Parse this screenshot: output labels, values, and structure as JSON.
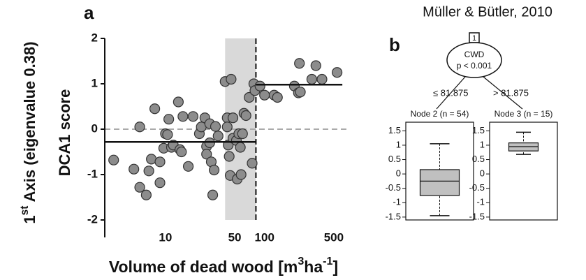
{
  "credit": "Müller & Bütler, 2010",
  "chart_data": [
    {
      "type": "scatter",
      "title": "a",
      "ylabel_lines": [
        [
          {
            "text": "1"
          },
          {
            "text": "st",
            "sup": true
          },
          {
            "text": " Axis (eigenvalue 0.38)"
          }
        ],
        [
          {
            "text": "DCA1 score"
          }
        ]
      ],
      "xlabel": [
        {
          "text": "Volume of dead wood [m"
        },
        {
          "text": "3",
          "sup": true
        },
        {
          "text": "ha"
        },
        {
          "text": "-1",
          "sup": true
        },
        {
          "text": "]"
        }
      ],
      "xlog": true,
      "xlim": [
        2.44,
        716
      ],
      "ylim": [
        -2,
        2
      ],
      "xticks": [
        10,
        50,
        100,
        500
      ],
      "yticks": [
        2,
        1,
        0,
        -1,
        -2
      ],
      "color": "#8c8c8c",
      "shade": [
        40,
        81.875
      ],
      "vline": 81.875,
      "hline": 0,
      "means": [
        {
          "from": 2.44,
          "to": 81.875,
          "value": -0.28
        },
        {
          "from": 81.875,
          "to": 610,
          "value": 0.98
        }
      ],
      "x": [
        3.0,
        4.8,
        5.5,
        5.5,
        6.4,
        6.8,
        7.2,
        7.8,
        8.8,
        8.8,
        9.6,
        10,
        10.5,
        10.8,
        11.5,
        12,
        13.5,
        14,
        14.5,
        15,
        17,
        19,
        22,
        23,
        25,
        26,
        26,
        28,
        28,
        29,
        30,
        31,
        32,
        34,
        40,
        42,
        42,
        43,
        44,
        45,
        46,
        48,
        48,
        52,
        53,
        55,
        57,
        58,
        60,
        62,
        65,
        70,
        75,
        78,
        80,
        90,
        100,
        125,
        135,
        200,
        220,
        225,
        230,
        300,
        330,
        380,
        540
      ],
      "y": [
        -0.68,
        -0.88,
        0.05,
        -1.28,
        -1.45,
        -0.92,
        -0.66,
        0.45,
        -1.18,
        -0.72,
        -0.42,
        -0.1,
        -0.12,
        0.22,
        -0.4,
        -0.35,
        0.6,
        -0.45,
        -0.5,
        0.28,
        -0.82,
        0.28,
        -0.1,
        0.05,
        0.25,
        -0.38,
        -0.55,
        -0.3,
        0.12,
        -0.72,
        -1.45,
        -0.9,
        0.06,
        -0.15,
        1.05,
        0.25,
        0.05,
        -0.35,
        -0.6,
        -1.02,
        1.1,
        0.25,
        -0.2,
        -0.25,
        -1.1,
        -0.1,
        -0.4,
        -1.0,
        -0.1,
        0.35,
        0.3,
        0.7,
        -0.75,
        1.0,
        0.85,
        0.95,
        0.75,
        0.75,
        0.7,
        0.95,
        0.8,
        1.45,
        0.82,
        1.1,
        1.4,
        1.1,
        1.25
      ]
    },
    {
      "type": "box",
      "title": "b",
      "split": {
        "id": "1",
        "variable": "CWD",
        "p": "p < 0.001",
        "left": "≤ 81.875",
        "right": "> 81.875"
      },
      "categories": [
        "Node 2 (n = 54)",
        "Node 3 (n = 15)"
      ],
      "ylim": [
        -1.6,
        1.8
      ],
      "yticks": [
        1.5,
        1,
        0.5,
        0,
        -0.5,
        -1,
        -1.5
      ],
      "color": "#c0c0c0",
      "boxes": [
        {
          "low": -1.45,
          "q1": -0.75,
          "median": -0.25,
          "q3": 0.15,
          "high": 1.05
        },
        {
          "low": 0.68,
          "q1": 0.8,
          "median": 0.95,
          "q3": 1.08,
          "high": 1.45
        }
      ]
    }
  ]
}
